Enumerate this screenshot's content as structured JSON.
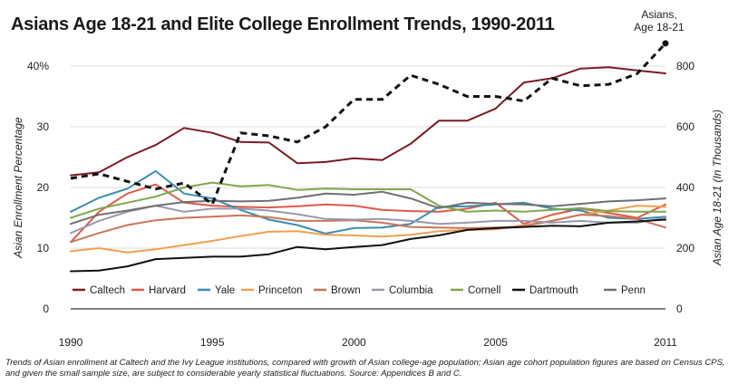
{
  "chart_data": {
    "type": "line",
    "title": "Asians Age 18-21 and Elite College Enrollment Trends, 1990-2011",
    "ylabel": "Asian Enrollment Percentage",
    "y2label": "Asian Age 18-21 (In Thousands)",
    "xlim": [
      1990,
      2011
    ],
    "ylim": [
      0,
      40
    ],
    "y2lim": [
      0,
      800
    ],
    "x_ticks": [
      "1990",
      "1995",
      "2000",
      "2005",
      "2011"
    ],
    "x_tick_values": [
      1990,
      1995,
      2000,
      2005,
      2011
    ],
    "y_ticks": [
      "0",
      "10",
      "20",
      "30",
      "40%"
    ],
    "y_tick_values": [
      0,
      10,
      20,
      30,
      40
    ],
    "y2_ticks": [
      "0",
      "200",
      "400",
      "600",
      "800"
    ],
    "y2_tick_values": [
      0,
      200,
      400,
      600,
      800
    ],
    "annotation": [
      "Asians,",
      "Age 18-21"
    ],
    "grid": true,
    "legend_position": "bottom",
    "x": [
      1990,
      1991,
      1992,
      1993,
      1994,
      1995,
      1996,
      1997,
      1998,
      1999,
      2000,
      2001,
      2002,
      2003,
      2004,
      2005,
      2006,
      2007,
      2008,
      2009,
      2010,
      2011
    ],
    "series": [
      {
        "name": "Caltech",
        "color": "#7b1c24",
        "values": [
          22,
          22.5,
          25,
          27,
          29.8,
          29,
          27.5,
          27.4,
          24,
          24.2,
          24.8,
          24.5,
          27.2,
          31,
          31,
          33,
          37.3,
          38,
          39.6,
          39.8,
          39.3,
          38.8
        ]
      },
      {
        "name": "Harvard",
        "color": "#e05a48",
        "values": [
          11,
          16,
          19,
          20.5,
          17.5,
          17,
          16.8,
          16.7,
          16.9,
          17.2,
          17,
          16.3,
          16.1,
          16,
          16.5,
          17.5,
          14,
          15.5,
          16.5,
          15.8,
          15,
          17.2
        ]
      },
      {
        "name": "Yale",
        "color": "#3a8db0",
        "values": [
          16,
          18.3,
          19.8,
          22.7,
          19,
          18.2,
          16.3,
          14.7,
          13.8,
          12.4,
          13.3,
          13.4,
          14,
          16.8,
          16.9,
          17.2,
          17.5,
          16.5,
          16.2,
          15,
          14.8,
          15.2
        ]
      },
      {
        "name": "Princeton",
        "color": "#f0a050",
        "values": [
          9.5,
          10,
          9.3,
          9.8,
          10.5,
          11.2,
          12,
          12.7,
          12.8,
          12.2,
          12.1,
          11.9,
          12.2,
          12.8,
          13,
          13.1,
          13.8,
          14.5,
          15.5,
          16.2,
          17,
          16.8
        ]
      },
      {
        "name": "Brown",
        "color": "#c8765a",
        "values": [
          11,
          12.5,
          13.8,
          14.6,
          15,
          15.2,
          15.4,
          15.1,
          14.5,
          14.5,
          14.6,
          14.2,
          13.5,
          13.4,
          13.3,
          13.4,
          13.6,
          14.5,
          15.5,
          15.3,
          14.8,
          13.4
        ]
      },
      {
        "name": "Columbia",
        "color": "#9898b0",
        "values": [
          12.5,
          14.5,
          16,
          17,
          16,
          16.5,
          16.5,
          16.2,
          15.6,
          14.8,
          14.7,
          14.8,
          14.5,
          14,
          14.2,
          14.5,
          14.5,
          14.2,
          14.5,
          14.2,
          14.2,
          15
        ]
      },
      {
        "name": "Cornell",
        "color": "#7ea84e",
        "values": [
          15,
          16.5,
          17.5,
          18.5,
          20,
          20.8,
          20.2,
          20.4,
          19.6,
          19.8,
          19.7,
          19.7,
          19.7,
          17,
          16,
          16.2,
          16,
          16.3,
          16.6,
          16.1,
          16,
          16
        ]
      },
      {
        "name": "Dartmouth",
        "color": "#111111",
        "values": [
          6.2,
          6.3,
          7,
          8.2,
          8.4,
          8.6,
          8.6,
          9,
          10.2,
          9.8,
          10.2,
          10.5,
          11.5,
          12.1,
          13,
          13.3,
          13.5,
          13.7,
          13.6,
          14.2,
          14.4,
          14.7
        ]
      },
      {
        "name": "Penn",
        "color": "#707070",
        "values": [
          14,
          15.5,
          16.2,
          17,
          17.6,
          17.8,
          17.7,
          17.8,
          18.3,
          19,
          18.8,
          19.3,
          18.2,
          16.6,
          17.5,
          17.3,
          17.2,
          16.9,
          17.3,
          17.7,
          17.9,
          18.2
        ]
      },
      {
        "name": "Asians, Age 18-21",
        "axis": "right",
        "dashed": true,
        "color": "#111111",
        "values": [
          430,
          445,
          420,
          395,
          415,
          345,
          580,
          570,
          550,
          600,
          690,
          690,
          770,
          740,
          700,
          700,
          685,
          760,
          735,
          740,
          775,
          875
        ]
      }
    ],
    "legend": [
      "Caltech",
      "Harvard",
      "Yale",
      "Princeton",
      "Brown",
      "Columbia",
      "Cornell",
      "Dartmouth",
      "Penn"
    ]
  },
  "caption": "Trends of Asian enrollment at Caltech and the Ivy League institutions, compared with growth of Asian college-age population; Asian age cohort population figures are based on Census CPS, and given the small sample size, are subject to considerable yearly statistical fluctuations. Source: Appendices B and C."
}
